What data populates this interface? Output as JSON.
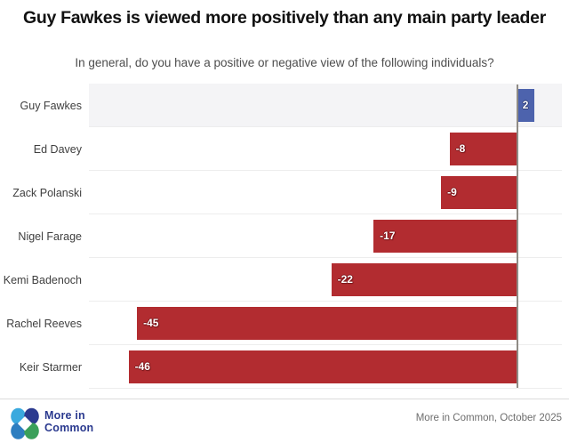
{
  "header": {
    "title": "Guy Fawkes is viewed more positively than any main party leader",
    "subtitle": "In general, do you have a positive or negative view of the following individuals?"
  },
  "chart_data": {
    "type": "bar",
    "orientation": "horizontal",
    "categories": [
      "Guy Fawkes",
      "Ed Davey",
      "Zack Polanski",
      "Nigel Farage",
      "Kemi Badenoch",
      "Rachel Reeves",
      "Keir Starmer"
    ],
    "values": [
      2,
      -8,
      -9,
      -17,
      -22,
      -45,
      -46
    ],
    "value_labels": [
      "2",
      "-8",
      "-9",
      "-17",
      "-22",
      "-45",
      "-46"
    ],
    "xlim": [
      -50.7,
      5.3
    ],
    "grid": false,
    "legend": false,
    "positive_color": "#4d63ad",
    "negative_color": "#b22c30",
    "axis_color": "#8f8b85",
    "highlight_row": 0,
    "highlight_row_bg": "#f4f4f6"
  },
  "footer": {
    "logo_line1": "More in",
    "logo_line2": "Common",
    "source": "More in Common, October 2025",
    "logo_colors": {
      "light_blue": "#3aa9de",
      "navy": "#2b3a8f",
      "mid_blue": "#2e7ec0",
      "green": "#3aa05a"
    }
  }
}
